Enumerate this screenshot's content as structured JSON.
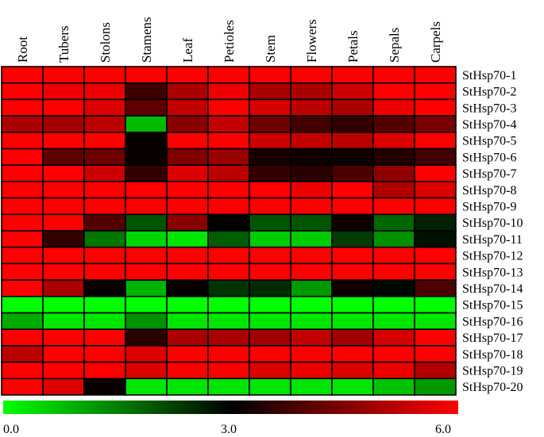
{
  "chart_data": {
    "type": "heatmap",
    "title": "",
    "columns": [
      "Root",
      "Tubers",
      "Stolons",
      "Stamens",
      "Leaf",
      "Petioles",
      "Stem",
      "Flowers",
      "Petals",
      "Sepals",
      "Carpels"
    ],
    "rows": [
      "StHsp70-1",
      "StHsp70-2",
      "StHsp70-3",
      "StHsp70-4",
      "StHsp70-5",
      "StHsp70-6",
      "StHsp70-7",
      "StHsp70-8",
      "StHsp70-9",
      "StHsp70-10",
      "StHsp70-11",
      "StHsp70-12",
      "StHsp70-13",
      "StHsp70-14",
      "StHsp70-15",
      "StHsp70-16",
      "StHsp70-17",
      "StHsp70-18",
      "StHsp70-19",
      "StHsp70-20"
    ],
    "values": [
      [
        6.0,
        6.0,
        6.0,
        6.0,
        6.0,
        6.0,
        6.0,
        6.0,
        6.0,
        6.0,
        6.0
      ],
      [
        6.0,
        5.8,
        5.8,
        3.7,
        5.0,
        5.8,
        5.0,
        5.0,
        5.4,
        6.0,
        6.0
      ],
      [
        6.0,
        6.0,
        5.6,
        4.1,
        5.3,
        6.0,
        5.5,
        5.2,
        5.0,
        5.8,
        6.0
      ],
      [
        5.0,
        4.9,
        5.2,
        0.8,
        4.6,
        5.3,
        4.3,
        3.8,
        3.6,
        4.0,
        4.4
      ],
      [
        6.0,
        6.0,
        6.0,
        3.1,
        6.0,
        6.0,
        5.4,
        5.3,
        5.2,
        5.6,
        6.0
      ],
      [
        6.0,
        4.1,
        4.3,
        3.1,
        4.5,
        4.8,
        3.3,
        3.2,
        3.2,
        3.4,
        3.8
      ],
      [
        6.0,
        6.0,
        5.4,
        3.6,
        5.6,
        5.2,
        3.6,
        3.5,
        3.9,
        4.7,
        6.0
      ],
      [
        6.0,
        6.0,
        6.0,
        6.0,
        6.0,
        6.0,
        6.0,
        5.8,
        6.0,
        5.1,
        5.6
      ],
      [
        6.0,
        6.0,
        6.0,
        6.0,
        6.0,
        6.0,
        6.0,
        6.0,
        6.0,
        6.0,
        6.0
      ],
      [
        6.0,
        6.0,
        4.0,
        2.0,
        4.6,
        3.0,
        2.0,
        2.0,
        3.2,
        1.8,
        2.6
      ],
      [
        6.0,
        3.6,
        1.6,
        0.5,
        0.3,
        1.9,
        0.6,
        0.6,
        2.3,
        1.3,
        2.8
      ],
      [
        6.0,
        6.0,
        6.0,
        6.0,
        6.0,
        6.0,
        6.0,
        6.0,
        6.0,
        6.0,
        6.0
      ],
      [
        6.0,
        6.0,
        6.0,
        6.0,
        6.0,
        6.0,
        6.0,
        6.0,
        6.0,
        6.0,
        6.0
      ],
      [
        6.0,
        5.0,
        3.1,
        0.9,
        3.1,
        2.4,
        2.5,
        1.2,
        3.2,
        2.9,
        3.9
      ],
      [
        0.0,
        0.0,
        0.0,
        0.0,
        0.0,
        0.0,
        0.0,
        0.0,
        0.0,
        0.0,
        0.0
      ],
      [
        1.0,
        0.3,
        0.3,
        1.3,
        0.3,
        0.3,
        0.3,
        0.3,
        0.3,
        0.3,
        0.3
      ],
      [
        6.0,
        6.0,
        6.0,
        3.5,
        5.0,
        5.0,
        4.9,
        5.3,
        4.9,
        5.5,
        6.0
      ],
      [
        5.2,
        6.0,
        6.0,
        5.6,
        6.0,
        6.0,
        6.0,
        6.0,
        6.0,
        6.0,
        6.0
      ],
      [
        6.0,
        6.0,
        6.0,
        5.6,
        6.0,
        6.0,
        5.6,
        5.8,
        5.6,
        5.8,
        5.1
      ],
      [
        6.0,
        5.6,
        3.1,
        0.3,
        0.3,
        0.3,
        0.3,
        0.3,
        0.3,
        0.7,
        1.2
      ]
    ],
    "color_scale": {
      "min": 0.0,
      "mid": 3.0,
      "max": 6.0,
      "min_color": "#00ff00",
      "mid_color": "#000000",
      "max_color": "#ff0000",
      "tick_labels": [
        "0.0",
        "3.0",
        "6.0"
      ]
    },
    "legend_position": "bottom",
    "cell_border_color": "#000000"
  }
}
